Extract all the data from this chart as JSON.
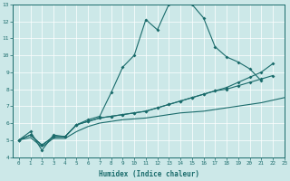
{
  "xlabel": "Humidex (Indice chaleur)",
  "xlim": [
    -0.5,
    23
  ],
  "ylim": [
    4,
    13
  ],
  "xticks": [
    0,
    1,
    2,
    3,
    4,
    5,
    6,
    7,
    8,
    9,
    10,
    11,
    12,
    13,
    14,
    15,
    16,
    17,
    18,
    19,
    20,
    21,
    22,
    23
  ],
  "yticks": [
    4,
    5,
    6,
    7,
    8,
    9,
    10,
    11,
    12,
    13
  ],
  "background_color": "#cce8e8",
  "line_color": "#1a6b6b",
  "grid_color": "#ffffff",
  "line1_y": [
    5.0,
    5.5,
    4.4,
    5.3,
    5.2,
    5.9,
    6.2,
    6.4,
    7.8,
    9.3,
    10.0,
    12.1,
    11.5,
    13.0,
    13.3,
    13.0,
    12.2,
    10.5,
    9.9,
    9.6,
    9.2,
    8.5
  ],
  "line2_y": [
    5.0,
    5.3,
    4.7,
    5.2,
    5.2,
    5.9,
    6.1,
    6.3,
    6.4,
    6.5,
    6.6,
    6.7,
    6.9,
    7.1,
    7.3,
    7.5,
    7.7,
    7.9,
    8.0,
    8.2,
    8.4,
    8.6,
    8.8
  ],
  "line3_y": [
    5.0,
    5.3,
    4.7,
    5.2,
    5.2,
    5.9,
    6.1,
    6.3,
    6.4,
    6.5,
    6.6,
    6.7,
    6.9,
    7.1,
    7.3,
    7.5,
    7.7,
    7.9,
    8.1,
    8.4,
    8.7,
    9.0,
    9.5
  ],
  "line4_y": [
    5.0,
    5.15,
    4.6,
    5.1,
    5.1,
    5.5,
    5.8,
    6.0,
    6.1,
    6.2,
    6.25,
    6.3,
    6.4,
    6.5,
    6.6,
    6.65,
    6.7,
    6.8,
    6.9,
    7.0,
    7.1,
    7.2,
    7.35,
    7.5
  ],
  "lw": 0.8,
  "marker_size": 2.0
}
